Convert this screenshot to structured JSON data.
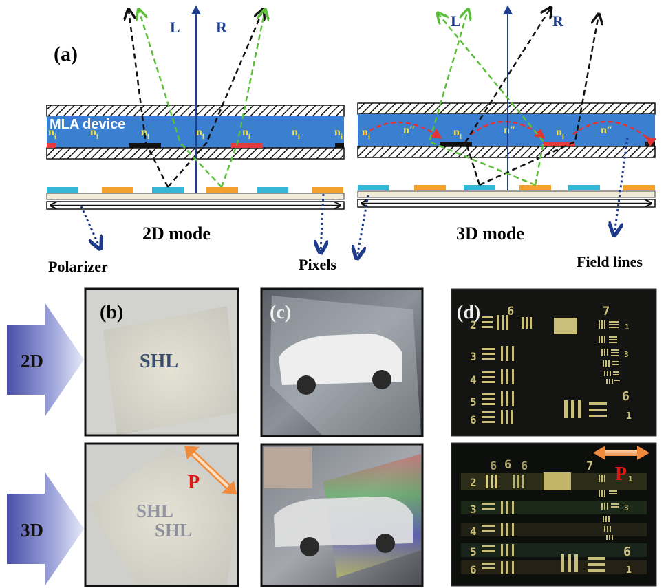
{
  "panel_a": {
    "label": "(a)",
    "left": {
      "device_label": "MLA device",
      "n_label": "n",
      "n_sub": "i",
      "L": "L",
      "R": "R",
      "mode": "2D mode"
    },
    "right": {
      "n_label": "n",
      "n_sub": "i",
      "n_pp": "n″",
      "L": "L",
      "R": "R",
      "mode": "3D mode"
    },
    "callouts": {
      "polarizer": "Polarizer",
      "pixels": "Pixels",
      "field_lines": "Field lines"
    }
  },
  "rows": {
    "top_label": "2D",
    "bottom_label": "3D"
  },
  "panel_b": {
    "label": "(b)",
    "text_2d": "SHL",
    "text_3d": "SHL",
    "p_label": "P"
  },
  "panel_c": {
    "label": "(c)"
  },
  "panel_d": {
    "label": "(d)",
    "p_label": "P",
    "numbers_top": [
      "6",
      "7",
      "2",
      "3",
      "4",
      "5",
      "6",
      "1",
      "3",
      "6",
      "1"
    ],
    "numbers_bottom": [
      "6",
      "6",
      "6",
      "7",
      "2",
      "3",
      "4",
      "5",
      "6",
      "1",
      "3",
      "6",
      "1"
    ]
  },
  "colors": {
    "device_blue": "#3a7fd0",
    "pixel_cyan": "#35b6d6",
    "pixel_orange": "#f3a02e",
    "electrode_red": "#e23b3b",
    "electrode_black": "#111111",
    "ray_black": "#111111",
    "ray_green": "#5cbf3a",
    "axis_blue": "#1e3f8f",
    "field_red": "#e33333",
    "arrow_blue": "#1e3a8a",
    "p_red": "#e01818",
    "n_yellow": "#f2e34a"
  }
}
